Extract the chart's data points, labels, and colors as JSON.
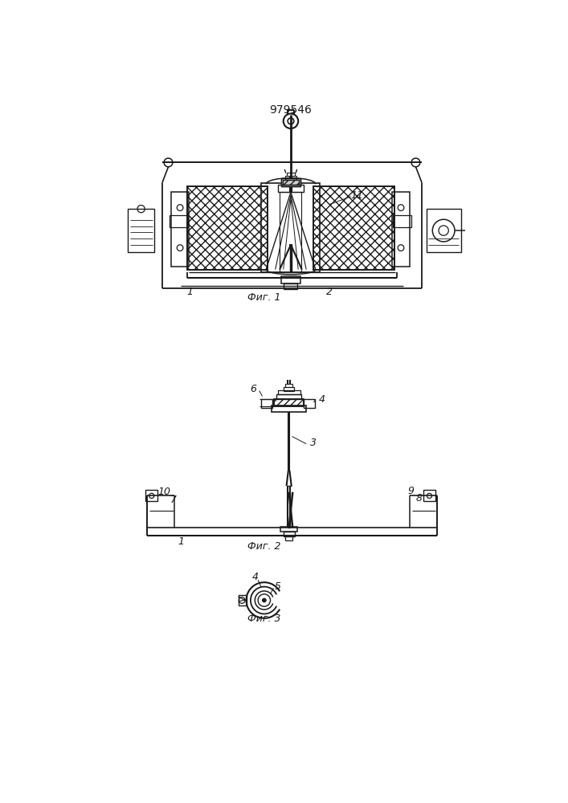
{
  "title": "979546",
  "bg_color": "#ffffff",
  "line_color": "#1a1a1a",
  "fig1_caption": "Фиг. 1",
  "fig2_caption": "Фиг. 2",
  "fig3_caption": "Фиг. 3",
  "lbl_1a": "1",
  "lbl_2a": "2",
  "lbl_11": "11",
  "lbl_1b": "1",
  "lbl_3": "3",
  "lbl_4b": "4",
  "lbl_6": "6",
  "lbl_7": "7",
  "lbl_8": "8",
  "lbl_9": "9",
  "lbl_10": "10",
  "lbl_4c": "4",
  "lbl_5": "5"
}
